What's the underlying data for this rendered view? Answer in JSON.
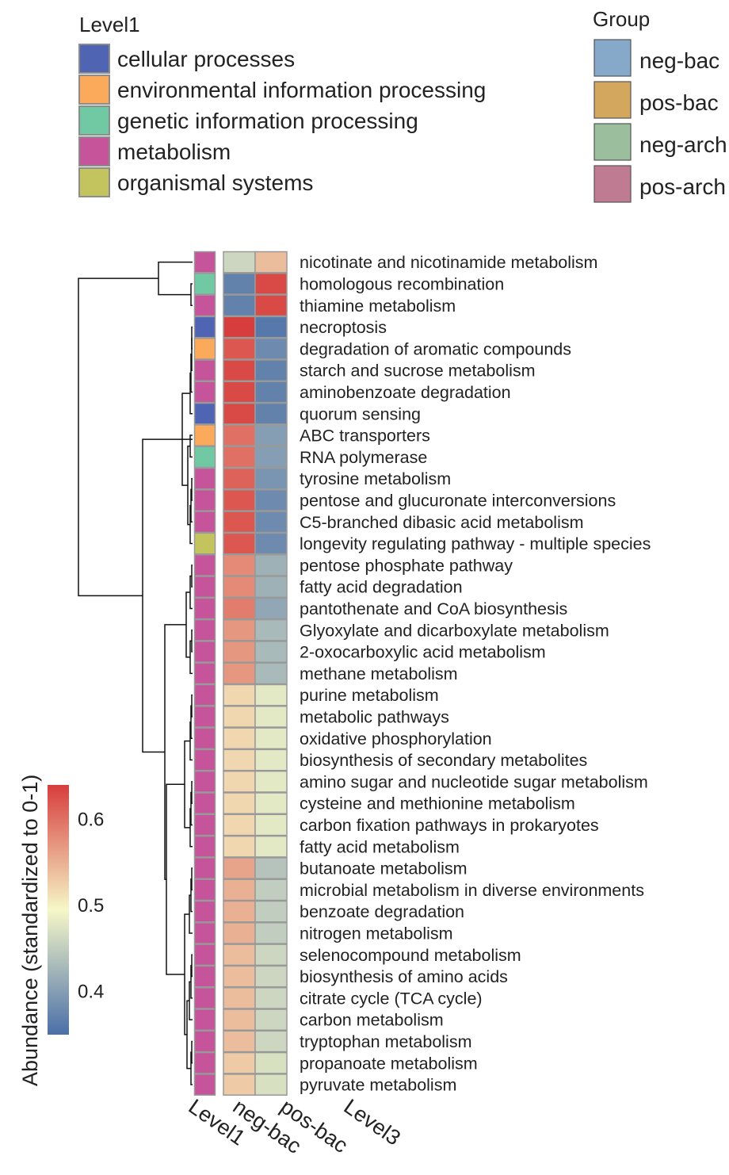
{
  "chart_data": {
    "type": "heatmap",
    "colorbar": {
      "title": "Abundance (standardized to 0-1)",
      "ticks": [
        0.6,
        0.5,
        0.4
      ],
      "range": [
        0.35,
        0.64
      ],
      "colors": {
        "low": "#4a6fa8",
        "mid": "#f6f7c8",
        "high": "#d73d3d"
      }
    },
    "level1_legend": {
      "title": "Level1",
      "items": [
        {
          "label": "cellular processes",
          "color": "#5064b4"
        },
        {
          "label": "environmental information processing",
          "color": "#fba95a"
        },
        {
          "label": "genetic information processing",
          "color": "#71c9a3"
        },
        {
          "label": "metabolism",
          "color": "#c6549b"
        },
        {
          "label": "organismal systems",
          "color": "#c4c45e"
        }
      ]
    },
    "group_legend": {
      "title": "Group",
      "items": [
        {
          "label": "neg-bac",
          "color": "#86a9c9"
        },
        {
          "label": "pos-bac",
          "color": "#d3a75e"
        },
        {
          "label": "neg-arch",
          "color": "#9bbf9c"
        },
        {
          "label": "pos-arch",
          "color": "#bf7b92"
        }
      ]
    },
    "columns": [
      "neg-bac",
      "pos-bac"
    ],
    "annotation_column": "Level1",
    "row_label_column": "Level3",
    "rows": [
      {
        "label": "nicotinate and nicotinamide metabolism",
        "level1": "metabolism",
        "values": [
          0.46,
          0.54
        ]
      },
      {
        "label": "homologous recombination",
        "level1": "genetic information processing",
        "values": [
          0.37,
          0.63
        ]
      },
      {
        "label": "thiamine metabolism",
        "level1": "metabolism",
        "values": [
          0.37,
          0.63
        ]
      },
      {
        "label": "necroptosis",
        "level1": "cellular processes",
        "values": [
          0.64,
          0.36
        ]
      },
      {
        "label": "degradation of aromatic compounds",
        "level1": "environmental information processing",
        "values": [
          0.62,
          0.38
        ]
      },
      {
        "label": "starch and sucrose metabolism",
        "level1": "metabolism",
        "values": [
          0.63,
          0.37
        ]
      },
      {
        "label": "aminobenzoate degradation",
        "level1": "metabolism",
        "values": [
          0.63,
          0.37
        ]
      },
      {
        "label": "quorum sensing",
        "level1": "cellular processes",
        "values": [
          0.63,
          0.37
        ]
      },
      {
        "label": "ABC transporters",
        "level1": "environmental information processing",
        "values": [
          0.6,
          0.4
        ]
      },
      {
        "label": "RNA polymerase",
        "level1": "genetic information processing",
        "values": [
          0.6,
          0.4
        ]
      },
      {
        "label": "tyrosine metabolism",
        "level1": "metabolism",
        "values": [
          0.61,
          0.39
        ]
      },
      {
        "label": "pentose and glucuronate interconversions",
        "level1": "metabolism",
        "values": [
          0.62,
          0.38
        ]
      },
      {
        "label": "C5-branched dibasic acid metabolism",
        "level1": "metabolism",
        "values": [
          0.62,
          0.38
        ]
      },
      {
        "label": "longevity regulating pathway - multiple species",
        "level1": "organismal systems",
        "values": [
          0.62,
          0.38
        ]
      },
      {
        "label": "pentose phosphate pathway",
        "level1": "metabolism",
        "values": [
          0.58,
          0.42
        ]
      },
      {
        "label": "fatty acid degradation",
        "level1": "metabolism",
        "values": [
          0.58,
          0.42
        ]
      },
      {
        "label": "pantothenate and CoA biosynthesis",
        "level1": "metabolism",
        "values": [
          0.59,
          0.41
        ]
      },
      {
        "label": "Glyoxylate and dicarboxylate metabolism",
        "level1": "metabolism",
        "values": [
          0.57,
          0.43
        ]
      },
      {
        "label": "2-oxocarboxylic acid metabolism",
        "level1": "metabolism",
        "values": [
          0.57,
          0.43
        ]
      },
      {
        "label": "methane metabolism",
        "level1": "metabolism",
        "values": [
          0.57,
          0.43
        ]
      },
      {
        "label": "purine metabolism",
        "level1": "metabolism",
        "values": [
          0.52,
          0.48
        ]
      },
      {
        "label": "metabolic pathways",
        "level1": "metabolism",
        "values": [
          0.52,
          0.48
        ]
      },
      {
        "label": "oxidative phosphorylation",
        "level1": "metabolism",
        "values": [
          0.52,
          0.48
        ]
      },
      {
        "label": "biosynthesis of secondary metabolites",
        "level1": "metabolism",
        "values": [
          0.52,
          0.48
        ]
      },
      {
        "label": "amino sugar and nucleotide sugar metabolism",
        "level1": "metabolism",
        "values": [
          0.52,
          0.48
        ]
      },
      {
        "label": "cysteine and methionine metabolism",
        "level1": "metabolism",
        "values": [
          0.52,
          0.48
        ]
      },
      {
        "label": "carbon fixation pathways in prokaryotes",
        "level1": "metabolism",
        "values": [
          0.52,
          0.48
        ]
      },
      {
        "label": "fatty acid metabolism",
        "level1": "metabolism",
        "values": [
          0.52,
          0.48
        ]
      },
      {
        "label": "butanoate metabolism",
        "level1": "metabolism",
        "values": [
          0.56,
          0.44
        ]
      },
      {
        "label": "microbial metabolism in diverse environments",
        "level1": "metabolism",
        "values": [
          0.55,
          0.45
        ]
      },
      {
        "label": "benzoate degradation",
        "level1": "metabolism",
        "values": [
          0.55,
          0.45
        ]
      },
      {
        "label": "nitrogen metabolism",
        "level1": "metabolism",
        "values": [
          0.55,
          0.45
        ]
      },
      {
        "label": "selenocompound metabolism",
        "level1": "metabolism",
        "values": [
          0.54,
          0.46
        ]
      },
      {
        "label": "biosynthesis of amino acids",
        "level1": "metabolism",
        "values": [
          0.54,
          0.46
        ]
      },
      {
        "label": "citrate cycle (TCA cycle)",
        "level1": "metabolism",
        "values": [
          0.54,
          0.46
        ]
      },
      {
        "label": "carbon metabolism",
        "level1": "metabolism",
        "values": [
          0.54,
          0.46
        ]
      },
      {
        "label": "tryptophan metabolism",
        "level1": "metabolism",
        "values": [
          0.54,
          0.46
        ]
      },
      {
        "label": "propanoate metabolism",
        "level1": "metabolism",
        "values": [
          0.53,
          0.47
        ]
      },
      {
        "label": "pyruvate metabolism",
        "level1": "metabolism",
        "values": [
          0.53,
          0.47
        ]
      }
    ]
  }
}
